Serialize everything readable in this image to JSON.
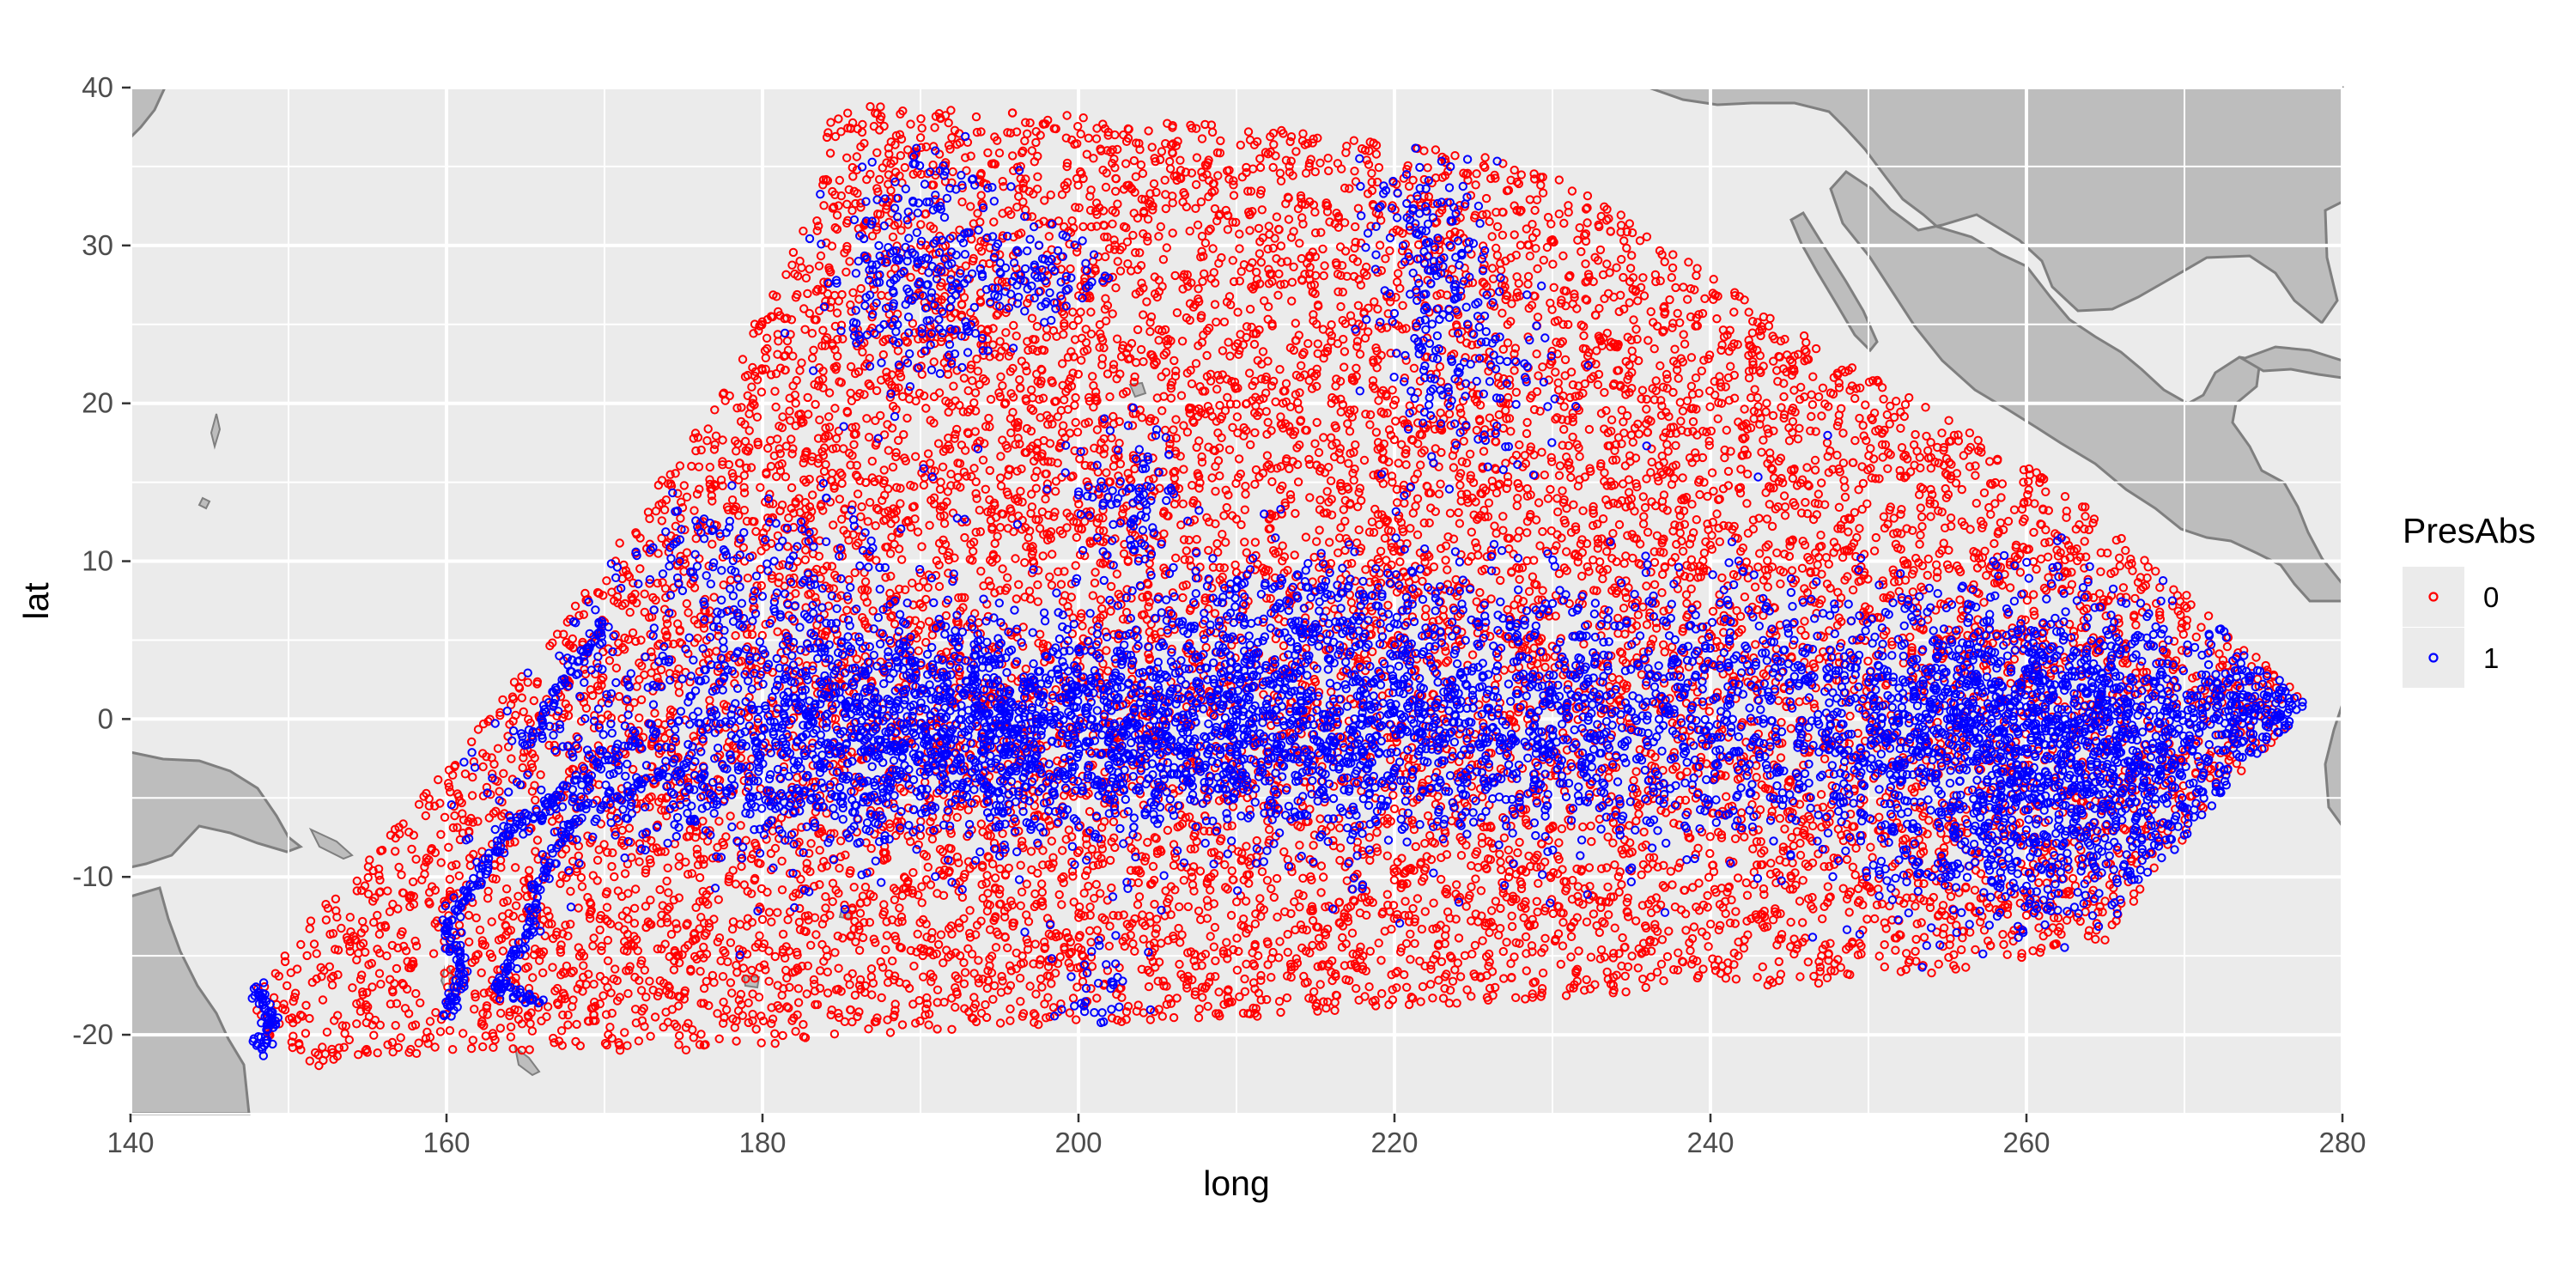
{
  "chart_data": {
    "type": "scatter",
    "xlabel": "long",
    "ylabel": "lat",
    "xlim": [
      140,
      280
    ],
    "ylim": [
      -25,
      40
    ],
    "x_ticks": [
      140,
      160,
      180,
      200,
      220,
      240,
      260,
      280
    ],
    "y_ticks": [
      -20,
      -10,
      0,
      10,
      20,
      30,
      40
    ],
    "grid": true,
    "legend": {
      "title": "PresAbs",
      "placement": "right",
      "entries": [
        {
          "label": "0",
          "color": "#ff0000"
        },
        {
          "label": "1",
          "color": "#0000ff"
        }
      ]
    },
    "background_color": "#ebebeb",
    "land_color": "#bdbdbd",
    "land_outline_color": "#7f7f7f",
    "sampling_region": [
      [
        184.5,
        39
      ],
      [
        200,
        38.2
      ],
      [
        215,
        37.2
      ],
      [
        230,
        35
      ],
      [
        240,
        28
      ],
      [
        250,
        22
      ],
      [
        262,
        15
      ],
      [
        270,
        8
      ],
      [
        278,
        1
      ],
      [
        273,
        -4
      ],
      [
        268,
        -10
      ],
      [
        265,
        -14
      ],
      [
        253,
        -16.5
      ],
      [
        240,
        -17
      ],
      [
        225,
        -18
      ],
      [
        210,
        -19
      ],
      [
        195,
        -19.5
      ],
      [
        175,
        -21
      ],
      [
        160,
        -21
      ],
      [
        152,
        -22
      ],
      [
        148,
        -20
      ],
      [
        147.5,
        -17
      ],
      [
        153,
        -11
      ],
      [
        160,
        -3
      ],
      [
        168,
        7
      ],
      [
        177,
        20
      ],
      [
        183,
        32
      ]
    ],
    "presence_clusters": [
      {
        "x": 205,
        "y": -1,
        "sx": 18,
        "sy": 3.5,
        "n": 2600
      },
      {
        "x": 262,
        "y": -1,
        "sx": 8,
        "sy": 4,
        "n": 1500
      },
      {
        "x": 240,
        "y": 1,
        "sx": 14,
        "sy": 4.5,
        "n": 900
      },
      {
        "x": 185,
        "y": 1,
        "sx": 8,
        "sy": 5,
        "n": 600
      },
      {
        "x": 275,
        "y": 0.5,
        "sx": 2,
        "sy": 1.5,
        "n": 120
      },
      {
        "x": 262,
        "y": -9,
        "sx": 6,
        "sy": 3,
        "n": 350
      },
      {
        "x": 190,
        "y": 28,
        "sx": 3,
        "sy": 4,
        "n": 250
      },
      {
        "x": 197,
        "y": 28,
        "sx": 2,
        "sy": 1.5,
        "n": 80
      },
      {
        "x": 222,
        "y": 30,
        "sx": 2,
        "sy": 4,
        "n": 140
      },
      {
        "x": 225,
        "y": 22,
        "sx": 2.5,
        "sy": 3,
        "n": 120
      },
      {
        "x": 203,
        "y": 14,
        "sx": 2,
        "sy": 2.5,
        "n": 90
      },
      {
        "x": 215,
        "y": 7,
        "sx": 6,
        "sy": 2,
        "n": 250
      },
      {
        "x": 178,
        "y": 10,
        "sx": 4,
        "sy": 2,
        "n": 100
      },
      {
        "x": 201,
        "y": -17,
        "sx": 1.5,
        "sy": 2,
        "n": 40
      },
      {
        "x": 175,
        "y": -5,
        "sx": 6,
        "sy": 2,
        "n": 150
      }
    ],
    "presence_tracks": [
      [
        [
          172,
          -1
        ],
        [
          167,
          -5
        ],
        [
          164,
          -7
        ],
        [
          162,
          -10
        ],
        [
          160,
          -13
        ],
        [
          161,
          -16
        ],
        [
          160,
          -19
        ]
      ],
      [
        [
          175,
          -3
        ],
        [
          168,
          -6
        ],
        [
          166,
          -10
        ],
        [
          165,
          -14
        ],
        [
          163,
          -17
        ],
        [
          166,
          -18
        ]
      ],
      [
        [
          148,
          -17
        ],
        [
          149,
          -19
        ],
        [
          148,
          -21
        ]
      ],
      [
        [
          170,
          6
        ],
        [
          168,
          3
        ],
        [
          165,
          -2
        ]
      ]
    ]
  }
}
